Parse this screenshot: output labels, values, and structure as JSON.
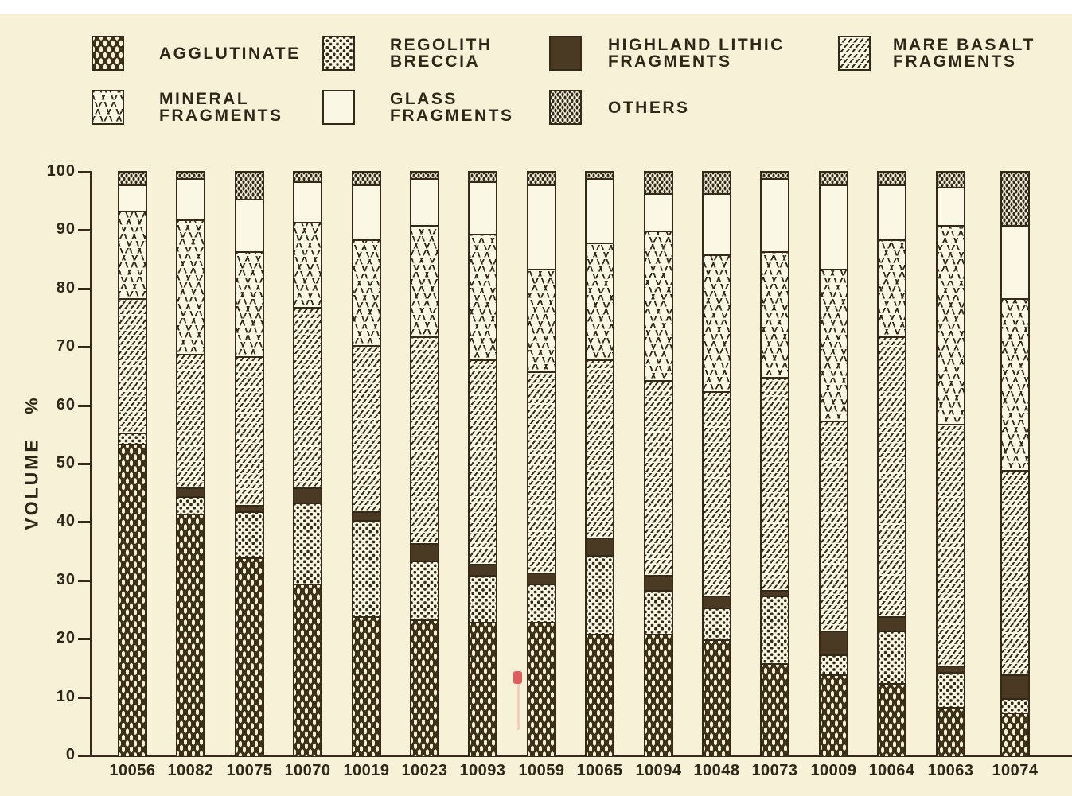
{
  "legend": {
    "items": [
      {
        "id": "agglutinate",
        "pattern": "agglutinate",
        "label_lines": [
          "AGGLUTINATE",
          ""
        ]
      },
      {
        "id": "regolith-breccia",
        "pattern": "breccia",
        "label_lines": [
          "REGOLITH",
          "BRECCIA"
        ]
      },
      {
        "id": "highland-lithic-fragments",
        "pattern": "highland",
        "label_lines": [
          "HIGHLAND LITHIC",
          "FRAGMENTS"
        ]
      },
      {
        "id": "mare-basalt-fragments",
        "pattern": "mare",
        "label_lines": [
          "MARE BASALT",
          "FRAGMENTS"
        ]
      },
      {
        "id": "mineral-fragments",
        "pattern": "mineral",
        "label_lines": [
          "MINERAL",
          "FRAGMENTS"
        ]
      },
      {
        "id": "glass-fragments",
        "pattern": "glass",
        "label_lines": [
          "GLASS",
          "FRAGMENTS"
        ]
      },
      {
        "id": "others",
        "pattern": "others",
        "label_lines": [
          "OTHERS",
          ""
        ]
      }
    ]
  },
  "chart_data": {
    "type": "bar",
    "subtype": "stacked-percentage",
    "title": "",
    "xlabel": "",
    "ylabel": "VOLUME %",
    "ylim": [
      0,
      100
    ],
    "y_ticks": [
      0,
      10,
      20,
      30,
      40,
      50,
      60,
      70,
      80,
      90,
      100
    ],
    "grid": false,
    "legend_position": "top",
    "stack_order": "bottom_to_top",
    "categories": [
      "10056",
      "10082",
      "10075",
      "10070",
      "10019",
      "10023",
      "10093",
      "10059",
      "10065",
      "10094",
      "10048",
      "10073",
      "10009",
      "10064",
      "10063",
      "10074"
    ],
    "series": [
      {
        "name": "AGGLUTINATE",
        "pattern": "agglutinate",
        "values": [
          53.5,
          41.5,
          34,
          29.5,
          24,
          23.5,
          23,
          23,
          21,
          21,
          20,
          16,
          14,
          12.5,
          8.5,
          7.5
        ]
      },
      {
        "name": "REGOLITH BRECCIA",
        "pattern": "breccia",
        "values": [
          2,
          3,
          8,
          14,
          16.5,
          10,
          8,
          6.5,
          13.5,
          7.5,
          5.5,
          11.5,
          3.5,
          9,
          6,
          2.5
        ]
      },
      {
        "name": "HIGHLAND LITHIC FRAGMENTS",
        "pattern": "highland",
        "values": [
          0,
          1.5,
          1,
          2.5,
          1.5,
          3,
          2,
          2,
          3,
          2.5,
          2,
          1,
          4,
          2.5,
          1,
          4
        ]
      },
      {
        "name": "MARE BASALT FRAGMENTS",
        "pattern": "mare",
        "values": [
          23,
          23,
          25.5,
          31,
          28.5,
          35.5,
          35,
          34.5,
          30.5,
          33.5,
          35,
          36.5,
          36,
          48,
          41.5,
          35
        ]
      },
      {
        "name": "MINERAL FRAGMENTS",
        "pattern": "mineral",
        "values": [
          15,
          23,
          18,
          14.5,
          18,
          19,
          21.5,
          17.5,
          20,
          25.5,
          23.5,
          21.5,
          26,
          16.5,
          34,
          29.5
        ]
      },
      {
        "name": "GLASS FRAGMENTS",
        "pattern": "glass",
        "values": [
          4.5,
          7,
          9,
          7,
          9.5,
          8,
          9,
          14.5,
          11,
          6.5,
          10.5,
          12.5,
          14.5,
          9.5,
          6.5,
          12.5
        ]
      },
      {
        "name": "OTHERS",
        "pattern": "others",
        "values": [
          2,
          1,
          4.5,
          1.5,
          2,
          1,
          1.5,
          2,
          1,
          3.5,
          3.5,
          1,
          2,
          2,
          2.5,
          9
        ]
      }
    ]
  },
  "colors": {
    "background": "#f7f2d7",
    "ink": "#342a17",
    "highland_fill": "#4a3a24",
    "red_ink_mark": "#dd4a50"
  }
}
